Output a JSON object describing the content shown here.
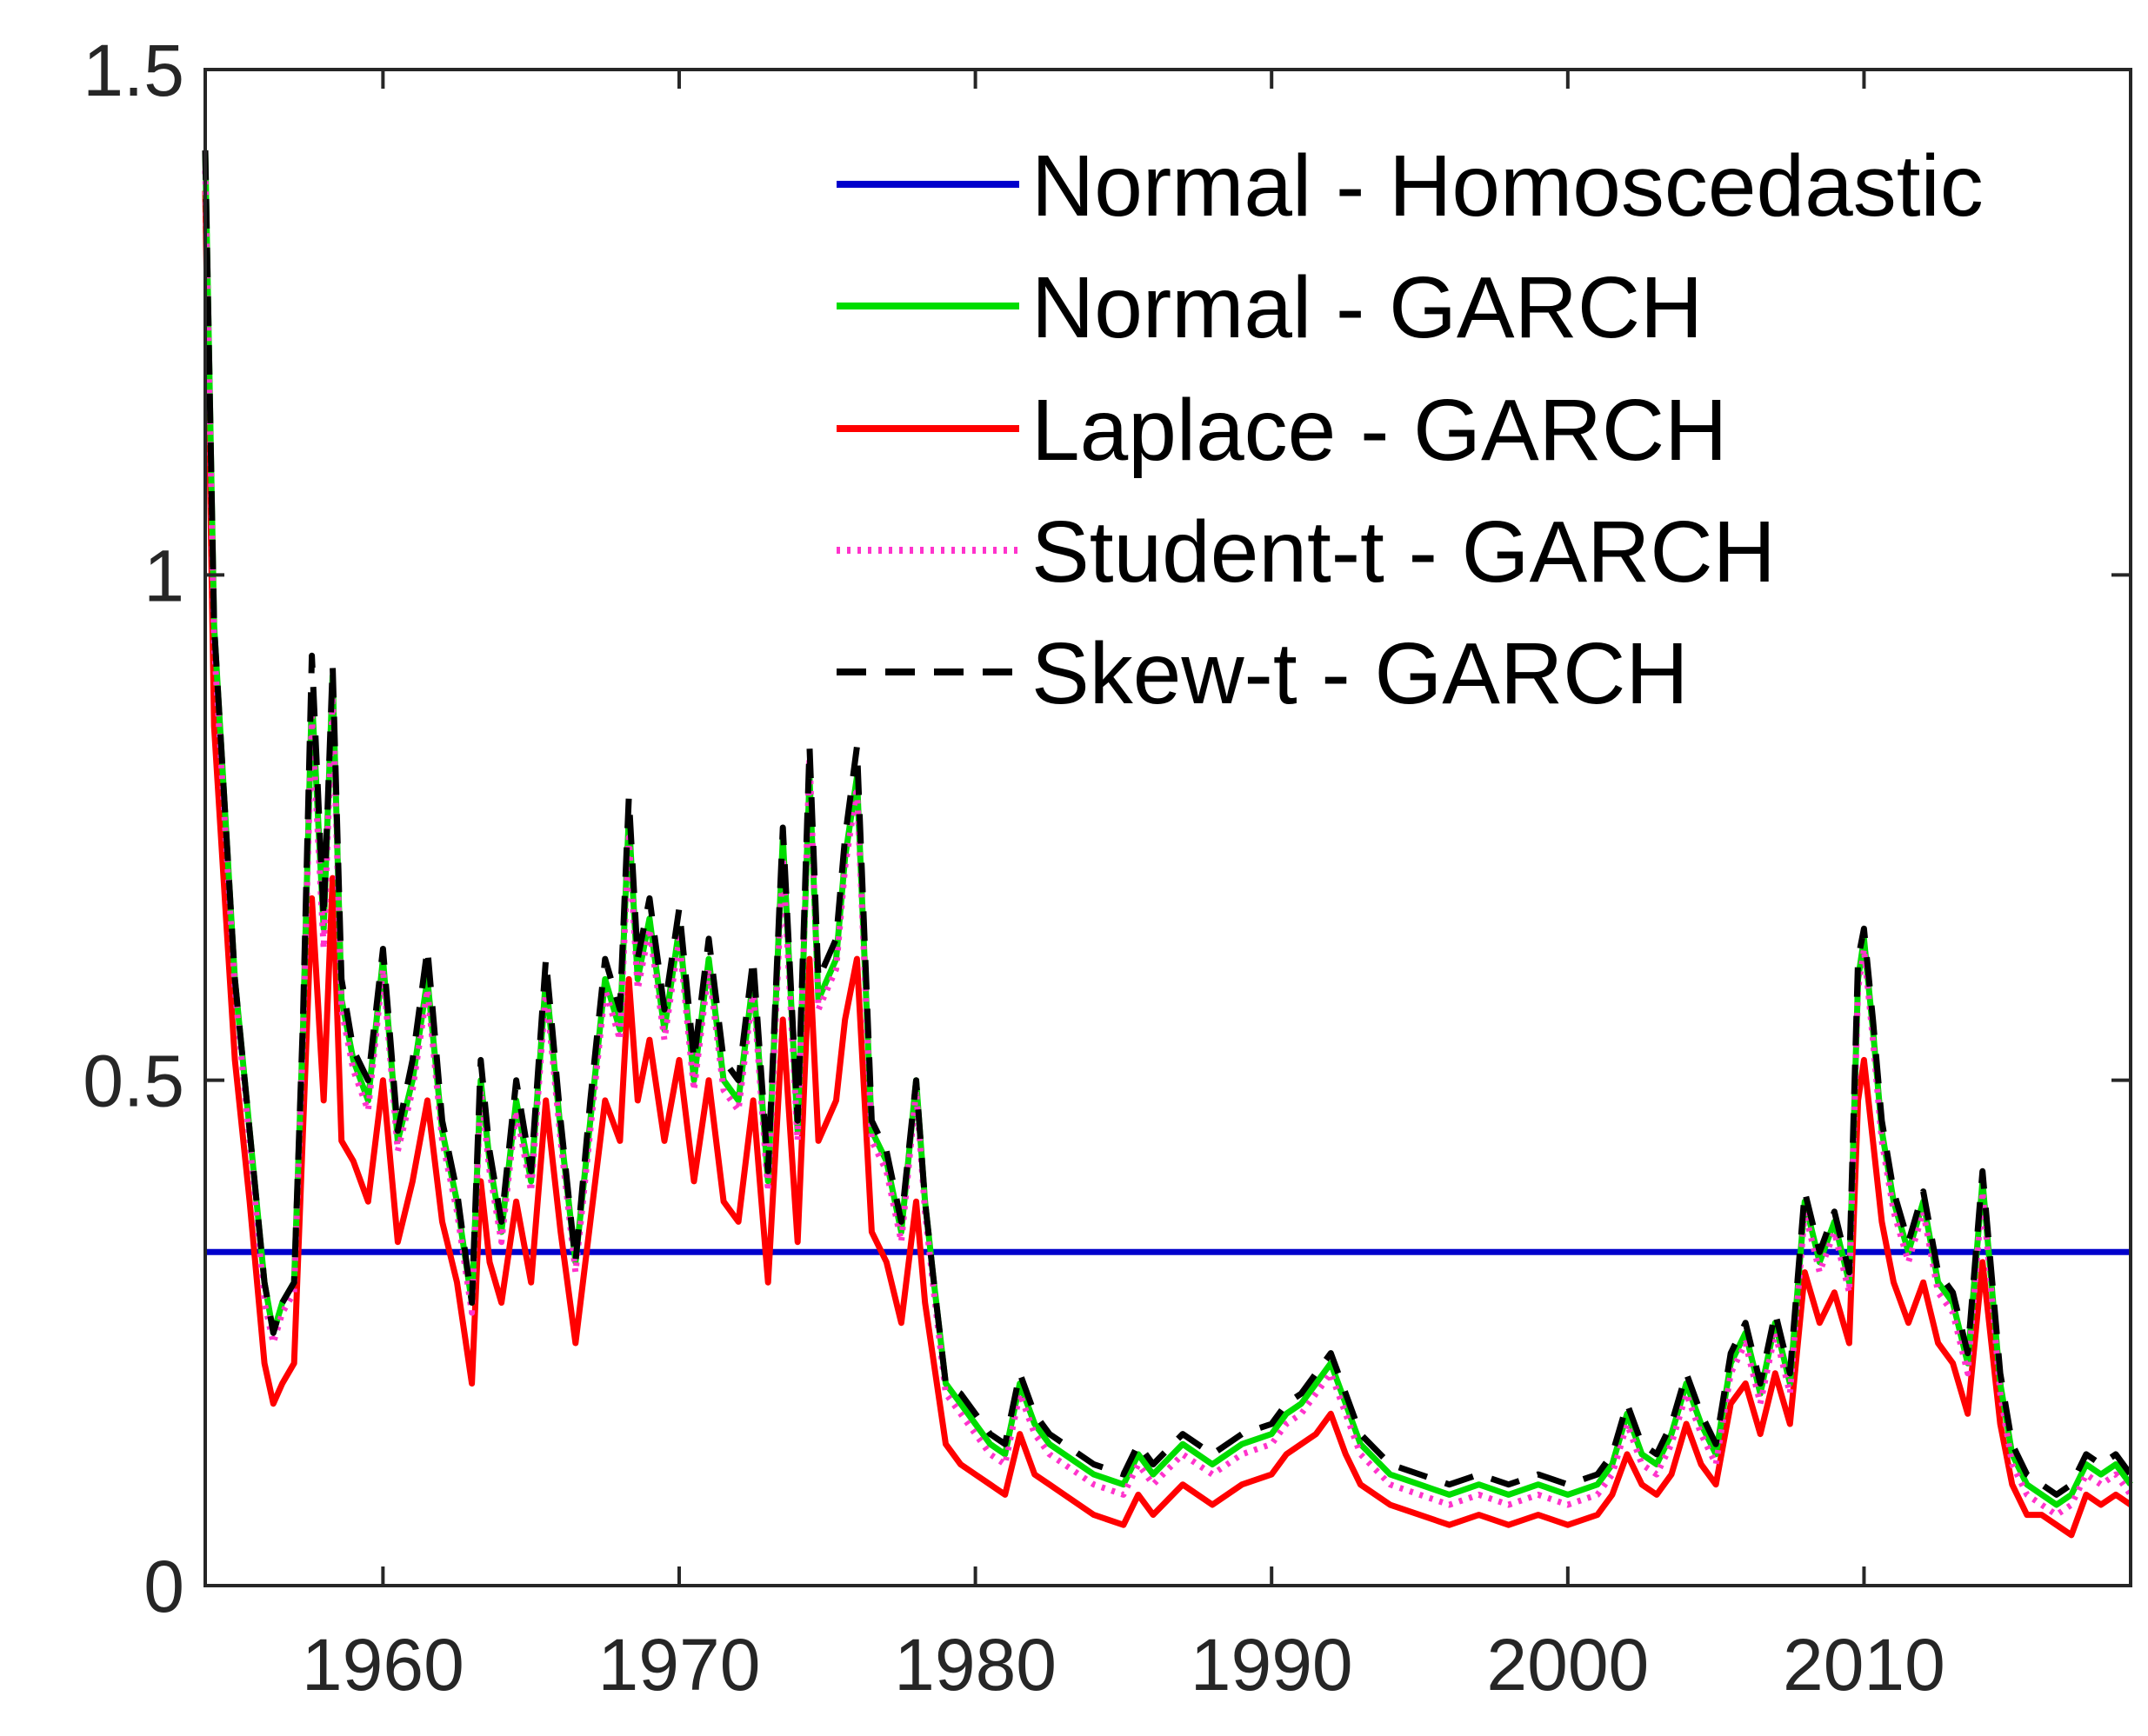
{
  "chart_data": {
    "type": "line",
    "title": "",
    "xlabel": "",
    "ylabel": "",
    "xlim": [
      1954,
      2019
    ],
    "ylim": [
      0,
      1.5
    ],
    "x_ticks": [
      "1960",
      "1970",
      "1980",
      "1990",
      "2000",
      "2010"
    ],
    "y_ticks": [
      "0",
      "0.5",
      "1",
      "1.5"
    ],
    "grid": false,
    "legend_position": "top-right",
    "series": [
      {
        "name": "Normal - Homoscedastic",
        "color": "#0000cc",
        "style": "solid",
        "x": [
          1954,
          2019
        ],
        "y": [
          0.33,
          0.33
        ]
      },
      {
        "name": "Normal - GARCH",
        "color": "#00dd00",
        "style": "solid",
        "x": [
          1954.0,
          1954.3,
          1955.0,
          1955.5,
          1956.0,
          1956.3,
          1956.6,
          1957.0,
          1957.3,
          1957.6,
          1958.0,
          1958.3,
          1958.6,
          1959.0,
          1959.5,
          1960.0,
          1960.5,
          1961.0,
          1961.5,
          1962.0,
          1962.5,
          1963.0,
          1963.3,
          1963.6,
          1964.0,
          1964.5,
          1965.0,
          1965.5,
          1966.0,
          1966.5,
          1967.0,
          1967.5,
          1968.0,
          1968.3,
          1968.6,
          1969.0,
          1969.5,
          1970.0,
          1970.5,
          1971.0,
          1971.5,
          1972.0,
          1972.5,
          1973.0,
          1973.5,
          1974.0,
          1974.4,
          1974.7,
          1975.0,
          1975.3,
          1975.6,
          1976.0,
          1976.5,
          1977.0,
          1977.5,
          1978.0,
          1978.3,
          1978.6,
          1979.0,
          1979.5,
          1980.0,
          1980.5,
          1981.0,
          1981.5,
          1982.0,
          1982.5,
          1983.0,
          1984.0,
          1985.0,
          1985.5,
          1986.0,
          1987.0,
          1988.0,
          1989.0,
          1990.0,
          1990.5,
          1991.0,
          1991.5,
          1992.0,
          1992.5,
          1993.0,
          1994.0,
          1995.0,
          1996.0,
          1997.0,
          1998.0,
          1999.0,
          2000.0,
          2001.0,
          2001.5,
          2002.0,
          2002.5,
          2003.0,
          2003.5,
          2004.0,
          2004.5,
          2005.0,
          2005.5,
          2006.0,
          2006.5,
          2007.0,
          2007.5,
          2008.0,
          2008.5,
          2009.0,
          2009.5,
          2009.8,
          2010.0,
          2010.3,
          2010.6,
          2011.0,
          2011.5,
          2012.0,
          2012.5,
          2013.0,
          2013.5,
          2014.0,
          2014.3,
          2014.6,
          2015.0,
          2015.5,
          2016.0,
          2016.5,
          2017.0,
          2017.5,
          2018.0,
          2018.5,
          2019.0
        ],
        "y": [
          1.42,
          0.95,
          0.6,
          0.45,
          0.3,
          0.25,
          0.28,
          0.3,
          0.55,
          0.88,
          0.65,
          0.9,
          0.58,
          0.52,
          0.48,
          0.62,
          0.44,
          0.5,
          0.6,
          0.45,
          0.38,
          0.28,
          0.5,
          0.42,
          0.35,
          0.48,
          0.4,
          0.6,
          0.45,
          0.32,
          0.46,
          0.6,
          0.55,
          0.76,
          0.6,
          0.66,
          0.55,
          0.65,
          0.5,
          0.62,
          0.5,
          0.48,
          0.6,
          0.4,
          0.74,
          0.45,
          0.8,
          0.58,
          0.6,
          0.62,
          0.72,
          0.8,
          0.45,
          0.42,
          0.35,
          0.5,
          0.38,
          0.3,
          0.2,
          0.18,
          0.16,
          0.14,
          0.13,
          0.2,
          0.16,
          0.14,
          0.13,
          0.11,
          0.1,
          0.13,
          0.11,
          0.14,
          0.12,
          0.14,
          0.15,
          0.17,
          0.18,
          0.2,
          0.22,
          0.18,
          0.14,
          0.11,
          0.1,
          0.09,
          0.1,
          0.09,
          0.1,
          0.09,
          0.1,
          0.12,
          0.17,
          0.13,
          0.12,
          0.15,
          0.2,
          0.16,
          0.13,
          0.22,
          0.25,
          0.19,
          0.26,
          0.2,
          0.38,
          0.32,
          0.36,
          0.3,
          0.6,
          0.64,
          0.55,
          0.45,
          0.38,
          0.33,
          0.38,
          0.3,
          0.28,
          0.22,
          0.4,
          0.3,
          0.2,
          0.13,
          0.1,
          0.09,
          0.08,
          0.09,
          0.12,
          0.11,
          0.12,
          0.1
        ]
      },
      {
        "name": "Laplace - GARCH",
        "color": "#ff0000",
        "style": "solid",
        "x": [
          1954.0,
          1954.3,
          1955.0,
          1955.5,
          1956.0,
          1956.3,
          1956.6,
          1957.0,
          1957.3,
          1957.6,
          1958.0,
          1958.3,
          1958.6,
          1959.0,
          1959.5,
          1960.0,
          1960.5,
          1961.0,
          1961.5,
          1962.0,
          1962.5,
          1963.0,
          1963.3,
          1963.6,
          1964.0,
          1964.5,
          1965.0,
          1965.5,
          1966.0,
          1966.5,
          1967.0,
          1967.5,
          1968.0,
          1968.3,
          1968.6,
          1969.0,
          1969.5,
          1970.0,
          1970.5,
          1971.0,
          1971.5,
          1972.0,
          1972.5,
          1973.0,
          1973.5,
          1974.0,
          1974.4,
          1974.7,
          1975.0,
          1975.3,
          1975.6,
          1976.0,
          1976.5,
          1977.0,
          1977.5,
          1978.0,
          1978.3,
          1978.6,
          1979.0,
          1979.5,
          1980.0,
          1980.5,
          1981.0,
          1981.5,
          1982.0,
          1982.5,
          1983.0,
          1984.0,
          1985.0,
          1985.5,
          1986.0,
          1987.0,
          1988.0,
          1989.0,
          1990.0,
          1990.5,
          1991.0,
          1991.5,
          1992.0,
          1992.5,
          1993.0,
          1994.0,
          1995.0,
          1996.0,
          1997.0,
          1998.0,
          1999.0,
          2000.0,
          2001.0,
          2001.5,
          2002.0,
          2002.5,
          2003.0,
          2003.5,
          2004.0,
          2004.5,
          2005.0,
          2005.5,
          2006.0,
          2006.5,
          2007.0,
          2007.5,
          2008.0,
          2008.5,
          2009.0,
          2009.5,
          2009.8,
          2010.0,
          2010.3,
          2010.6,
          2011.0,
          2011.5,
          2012.0,
          2012.5,
          2013.0,
          2013.5,
          2014.0,
          2014.3,
          2014.6,
          2015.0,
          2015.5,
          2016.0,
          2016.5,
          2017.0,
          2017.5,
          2018.0,
          2018.5,
          2019.0
        ],
        "y": [
          1.38,
          0.85,
          0.52,
          0.38,
          0.22,
          0.18,
          0.2,
          0.22,
          0.45,
          0.68,
          0.48,
          0.7,
          0.44,
          0.42,
          0.38,
          0.5,
          0.34,
          0.4,
          0.48,
          0.36,
          0.3,
          0.2,
          0.4,
          0.32,
          0.28,
          0.38,
          0.3,
          0.48,
          0.35,
          0.24,
          0.36,
          0.48,
          0.44,
          0.6,
          0.48,
          0.54,
          0.44,
          0.52,
          0.4,
          0.5,
          0.38,
          0.36,
          0.48,
          0.3,
          0.56,
          0.34,
          0.62,
          0.44,
          0.46,
          0.48,
          0.56,
          0.62,
          0.35,
          0.32,
          0.26,
          0.38,
          0.28,
          0.22,
          0.14,
          0.12,
          0.11,
          0.1,
          0.09,
          0.15,
          0.11,
          0.1,
          0.09,
          0.07,
          0.06,
          0.09,
          0.07,
          0.1,
          0.08,
          0.1,
          0.11,
          0.13,
          0.14,
          0.15,
          0.17,
          0.13,
          0.1,
          0.08,
          0.07,
          0.06,
          0.07,
          0.06,
          0.07,
          0.06,
          0.07,
          0.09,
          0.13,
          0.1,
          0.09,
          0.11,
          0.16,
          0.12,
          0.1,
          0.18,
          0.2,
          0.15,
          0.21,
          0.16,
          0.31,
          0.26,
          0.29,
          0.24,
          0.48,
          0.52,
          0.44,
          0.36,
          0.3,
          0.26,
          0.3,
          0.24,
          0.22,
          0.17,
          0.32,
          0.24,
          0.16,
          0.1,
          0.07,
          0.07,
          0.06,
          0.05,
          0.09,
          0.08,
          0.09,
          0.08
        ]
      },
      {
        "name": "Student-t - GARCH",
        "color": "#ff33cc",
        "style": "dotted",
        "x": [
          1954.0,
          1954.3,
          1955.0,
          1955.5,
          1956.0,
          1956.3,
          1956.6,
          1957.0,
          1957.3,
          1957.6,
          1958.0,
          1958.3,
          1958.6,
          1959.0,
          1959.5,
          1960.0,
          1960.5,
          1961.0,
          1961.5,
          1962.0,
          1962.5,
          1963.0,
          1963.3,
          1963.6,
          1964.0,
          1964.5,
          1965.0,
          1965.5,
          1966.0,
          1966.5,
          1967.0,
          1967.5,
          1968.0,
          1968.3,
          1968.6,
          1969.0,
          1969.5,
          1970.0,
          1970.5,
          1971.0,
          1971.5,
          1972.0,
          1972.5,
          1973.0,
          1973.5,
          1974.0,
          1974.4,
          1974.7,
          1975.0,
          1975.3,
          1975.6,
          1976.0,
          1976.5,
          1977.0,
          1977.5,
          1978.0,
          1978.3,
          1978.6,
          1979.0,
          1979.5,
          1980.0,
          1980.5,
          1981.0,
          1981.5,
          1982.0,
          1982.5,
          1983.0,
          1984.0,
          1985.0,
          1985.5,
          1986.0,
          1987.0,
          1988.0,
          1989.0,
          1990.0,
          1990.5,
          1991.0,
          1991.5,
          1992.0,
          1992.5,
          1993.0,
          1994.0,
          1995.0,
          1996.0,
          1997.0,
          1998.0,
          1999.0,
          2000.0,
          2001.0,
          2001.5,
          2002.0,
          2002.5,
          2003.0,
          2003.5,
          2004.0,
          2004.5,
          2005.0,
          2005.5,
          2006.0,
          2006.5,
          2007.0,
          2007.5,
          2008.0,
          2008.5,
          2009.0,
          2009.5,
          2009.8,
          2010.0,
          2010.3,
          2010.6,
          2011.0,
          2011.5,
          2012.0,
          2012.5,
          2013.0,
          2013.5,
          2014.0,
          2014.3,
          2014.6,
          2015.0,
          2015.5,
          2016.0,
          2016.5,
          2017.0,
          2017.5,
          2018.0,
          2018.5,
          2019.0
        ],
        "y": [
          1.4,
          0.93,
          0.59,
          0.44,
          0.28,
          0.24,
          0.27,
          0.29,
          0.54,
          0.86,
          0.63,
          0.88,
          0.57,
          0.51,
          0.47,
          0.61,
          0.43,
          0.49,
          0.59,
          0.44,
          0.37,
          0.27,
          0.49,
          0.41,
          0.34,
          0.47,
          0.39,
          0.59,
          0.44,
          0.31,
          0.45,
          0.59,
          0.54,
          0.74,
          0.59,
          0.65,
          0.54,
          0.64,
          0.49,
          0.61,
          0.49,
          0.47,
          0.59,
          0.39,
          0.72,
          0.44,
          0.82,
          0.57,
          0.59,
          0.61,
          0.71,
          0.79,
          0.44,
          0.41,
          0.34,
          0.49,
          0.37,
          0.29,
          0.19,
          0.17,
          0.15,
          0.13,
          0.12,
          0.19,
          0.15,
          0.13,
          0.12,
          0.1,
          0.09,
          0.12,
          0.1,
          0.13,
          0.11,
          0.13,
          0.14,
          0.16,
          0.17,
          0.19,
          0.21,
          0.17,
          0.13,
          0.1,
          0.09,
          0.08,
          0.09,
          0.08,
          0.09,
          0.08,
          0.09,
          0.11,
          0.16,
          0.12,
          0.11,
          0.14,
          0.19,
          0.15,
          0.12,
          0.21,
          0.24,
          0.18,
          0.25,
          0.19,
          0.37,
          0.31,
          0.35,
          0.29,
          0.59,
          0.63,
          0.54,
          0.44,
          0.37,
          0.32,
          0.37,
          0.29,
          0.27,
          0.21,
          0.39,
          0.29,
          0.19,
          0.12,
          0.09,
          0.08,
          0.07,
          0.08,
          0.11,
          0.1,
          0.11,
          0.09
        ]
      },
      {
        "name": "Skew-t - GARCH",
        "color": "#000000",
        "style": "dashed",
        "x": [
          1954.0,
          1954.3,
          1955.0,
          1955.5,
          1956.0,
          1956.3,
          1956.6,
          1957.0,
          1957.3,
          1957.6,
          1958.0,
          1958.3,
          1958.6,
          1959.0,
          1959.5,
          1960.0,
          1960.5,
          1961.0,
          1961.5,
          1962.0,
          1962.5,
          1963.0,
          1963.3,
          1963.6,
          1964.0,
          1964.5,
          1965.0,
          1965.5,
          1966.0,
          1966.5,
          1967.0,
          1967.5,
          1968.0,
          1968.3,
          1968.6,
          1969.0,
          1969.5,
          1970.0,
          1970.5,
          1971.0,
          1971.5,
          1972.0,
          1972.5,
          1973.0,
          1973.5,
          1974.0,
          1974.4,
          1974.7,
          1975.0,
          1975.3,
          1975.6,
          1976.0,
          1976.5,
          1977.0,
          1977.5,
          1978.0,
          1978.3,
          1978.6,
          1979.0,
          1979.5,
          1980.0,
          1980.5,
          1981.0,
          1981.5,
          1982.0,
          1982.5,
          1983.0,
          1984.0,
          1985.0,
          1985.5,
          1986.0,
          1987.0,
          1988.0,
          1989.0,
          1990.0,
          1990.5,
          1991.0,
          1991.5,
          1992.0,
          1992.5,
          1993.0,
          1994.0,
          1995.0,
          1996.0,
          1997.0,
          1998.0,
          1999.0,
          2000.0,
          2001.0,
          2001.5,
          2002.0,
          2002.5,
          2003.0,
          2003.5,
          2004.0,
          2004.5,
          2005.0,
          2005.5,
          2006.0,
          2006.5,
          2007.0,
          2007.5,
          2008.0,
          2008.5,
          2009.0,
          2009.5,
          2009.8,
          2010.0,
          2010.3,
          2010.6,
          2011.0,
          2011.5,
          2012.0,
          2012.5,
          2013.0,
          2013.5,
          2014.0,
          2014.3,
          2014.6,
          2015.0,
          2015.5,
          2016.0,
          2016.5,
          2017.0,
          2017.5,
          2018.0,
          2018.5,
          2019.0
        ],
        "y": [
          1.42,
          0.95,
          0.6,
          0.45,
          0.3,
          0.25,
          0.28,
          0.3,
          0.56,
          0.92,
          0.66,
          0.91,
          0.6,
          0.53,
          0.5,
          0.63,
          0.45,
          0.52,
          0.63,
          0.46,
          0.39,
          0.28,
          0.52,
          0.43,
          0.36,
          0.5,
          0.41,
          0.62,
          0.46,
          0.32,
          0.48,
          0.62,
          0.57,
          0.78,
          0.62,
          0.68,
          0.57,
          0.67,
          0.52,
          0.64,
          0.52,
          0.5,
          0.62,
          0.41,
          0.75,
          0.46,
          0.83,
          0.6,
          0.62,
          0.64,
          0.74,
          0.83,
          0.46,
          0.43,
          0.36,
          0.5,
          0.38,
          0.3,
          0.2,
          0.19,
          0.17,
          0.15,
          0.14,
          0.21,
          0.17,
          0.15,
          0.14,
          0.12,
          0.11,
          0.14,
          0.12,
          0.15,
          0.13,
          0.15,
          0.16,
          0.18,
          0.19,
          0.21,
          0.23,
          0.19,
          0.15,
          0.12,
          0.11,
          0.1,
          0.11,
          0.1,
          0.11,
          0.1,
          0.11,
          0.13,
          0.18,
          0.14,
          0.13,
          0.16,
          0.21,
          0.17,
          0.14,
          0.23,
          0.26,
          0.2,
          0.27,
          0.21,
          0.39,
          0.33,
          0.37,
          0.31,
          0.62,
          0.65,
          0.56,
          0.46,
          0.39,
          0.34,
          0.39,
          0.31,
          0.29,
          0.23,
          0.41,
          0.31,
          0.21,
          0.14,
          0.11,
          0.1,
          0.09,
          0.1,
          0.13,
          0.12,
          0.13,
          0.11
        ]
      }
    ]
  }
}
